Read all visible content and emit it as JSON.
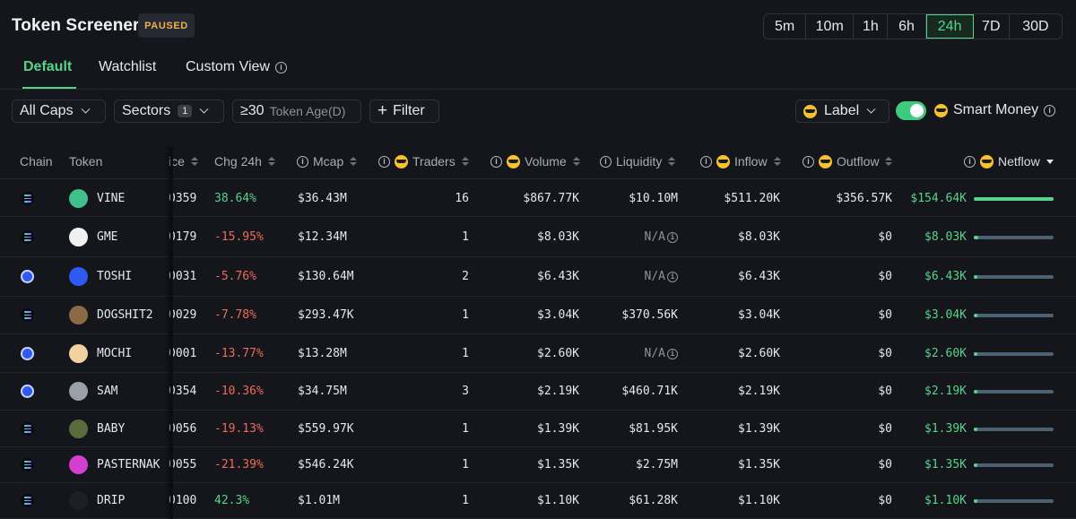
{
  "header": {
    "title": "Token Screener",
    "status": "PAUSED",
    "timeframes": [
      "5m",
      "10m",
      "1h",
      "6h",
      "24h",
      "7D",
      "30D"
    ],
    "active_timeframe": "24h"
  },
  "tabs": [
    {
      "label": "Default",
      "active": true
    },
    {
      "label": "Watchlist",
      "active": false
    },
    {
      "label": "Custom View",
      "active": false,
      "info": "i"
    }
  ],
  "filters": {
    "caps": "All Caps",
    "sectors": "Sectors",
    "sectors_count": "1",
    "age_value": "≥30",
    "age_label": "Token Age(D)",
    "filter": "Filter",
    "label": "Label",
    "smart_money": "Smart Money",
    "smart_money_on": true
  },
  "columns": {
    "chain": "Chain",
    "token": "Token",
    "price": "ice",
    "chg24h": "Chg 24h",
    "mcap": "Mcap",
    "traders": "Traders",
    "volume": "Volume",
    "liquidity": "Liquidity",
    "inflow": "Inflow",
    "outflow": "Outflow",
    "netflow": "Netflow"
  },
  "rows": [
    {
      "chain": "solana",
      "token": "VINE",
      "price": "0359",
      "chg": "38.64%",
      "chg_dir": "pos",
      "mcap": "$36.43M",
      "traders": "16",
      "volume": "$867.77K",
      "liquidity": "$10.10M",
      "inflow": "$511.20K",
      "outflow": "$356.57K",
      "netflow": "$154.64K",
      "netflow_share": 1.0,
      "avatar_color": "#3fbf8a"
    },
    {
      "chain": "solana",
      "token": "GME",
      "price": "0179",
      "chg": "-15.95%",
      "chg_dir": "neg",
      "mcap": "$12.34M",
      "traders": "1",
      "volume": "$8.03K",
      "liquidity": "N/A",
      "inflow": "$8.03K",
      "outflow": "$0",
      "netflow": "$8.03K",
      "netflow_share": 0.052,
      "avatar_color": "#f0f0f0"
    },
    {
      "chain": "base",
      "token": "TOSHI",
      "price": "0031",
      "chg": "-5.76%",
      "chg_dir": "neg",
      "mcap": "$130.64M",
      "traders": "2",
      "volume": "$6.43K",
      "liquidity": "N/A",
      "inflow": "$6.43K",
      "outflow": "$0",
      "netflow": "$6.43K",
      "netflow_share": 0.042,
      "avatar_color": "#2f59f2"
    },
    {
      "chain": "solana",
      "token": "DOGSHIT2",
      "price": "0029",
      "chg": "-7.78%",
      "chg_dir": "neg",
      "mcap": "$293.47K",
      "traders": "1",
      "volume": "$3.04K",
      "liquidity": "$370.56K",
      "inflow": "$3.04K",
      "outflow": "$0",
      "netflow": "$3.04K",
      "netflow_share": 0.02,
      "avatar_color": "#8a6a45"
    },
    {
      "chain": "base",
      "token": "MOCHI",
      "price": "0001",
      "chg": "-13.77%",
      "chg_dir": "neg",
      "mcap": "$13.28M",
      "traders": "1",
      "volume": "$2.60K",
      "liquidity": "N/A",
      "inflow": "$2.60K",
      "outflow": "$0",
      "netflow": "$2.60K",
      "netflow_share": 0.017,
      "avatar_color": "#f1d2a0"
    },
    {
      "chain": "base",
      "token": "SAM",
      "price": "0354",
      "chg": "-10.36%",
      "chg_dir": "neg",
      "mcap": "$34.75M",
      "traders": "3",
      "volume": "$2.19K",
      "liquidity": "$460.71K",
      "inflow": "$2.19K",
      "outflow": "$0",
      "netflow": "$2.19K",
      "netflow_share": 0.014,
      "avatar_color": "#9aa0a8"
    },
    {
      "chain": "solana",
      "token": "BABY",
      "price": "0056",
      "chg": "-19.13%",
      "chg_dir": "neg",
      "mcap": "$559.97K",
      "traders": "1",
      "volume": "$1.39K",
      "liquidity": "$81.95K",
      "inflow": "$1.39K",
      "outflow": "$0",
      "netflow": "$1.39K",
      "netflow_share": 0.009,
      "avatar_color": "#5a6b3c"
    },
    {
      "chain": "solana",
      "token": "PASTERNAK",
      "price": "0055",
      "chg": "-21.39%",
      "chg_dir": "neg",
      "mcap": "$546.24K",
      "traders": "1",
      "volume": "$1.35K",
      "liquidity": "$2.75M",
      "inflow": "$1.35K",
      "outflow": "$0",
      "netflow": "$1.35K",
      "netflow_share": 0.009,
      "avatar_color": "#d43fd0"
    },
    {
      "chain": "solana",
      "token": "DRIP",
      "price": "0100",
      "chg": "42.3%",
      "chg_dir": "pos",
      "mcap": "$1.01M",
      "traders": "1",
      "volume": "$1.10K",
      "liquidity": "$61.28K",
      "inflow": "$1.10K",
      "outflow": "$0",
      "netflow": "$1.10K",
      "netflow_share": 0.007,
      "avatar_color": "#1d1f24"
    }
  ]
}
